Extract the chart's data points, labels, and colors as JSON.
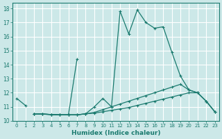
{
  "xlabel": "Humidex (Indice chaleur)",
  "bg_color": "#cce8e8",
  "grid_color": "#ffffff",
  "line_color": "#1a7a6e",
  "xlim": [
    -0.5,
    23.5
  ],
  "ylim": [
    10,
    18.4
  ],
  "xticks": [
    0,
    1,
    2,
    3,
    4,
    5,
    6,
    7,
    8,
    9,
    10,
    11,
    12,
    13,
    14,
    15,
    16,
    17,
    18,
    19,
    20,
    21,
    22,
    23
  ],
  "yticks": [
    10,
    11,
    12,
    13,
    14,
    15,
    16,
    17,
    18
  ],
  "curve_start": {
    "x": [
      0,
      1
    ],
    "y": [
      11.6,
      11.1
    ]
  },
  "curve_main": {
    "x": [
      2,
      3,
      4,
      5,
      6,
      7,
      8,
      9,
      10,
      11,
      12,
      13,
      14,
      15,
      16,
      17,
      18,
      19,
      20,
      21,
      22,
      23
    ],
    "y": [
      10.5,
      10.5,
      10.45,
      10.43,
      10.43,
      10.43,
      10.5,
      11.0,
      11.6,
      11.0,
      17.8,
      16.2,
      17.9,
      17.0,
      16.6,
      16.7,
      14.9,
      13.2,
      12.2,
      12.0,
      11.4,
      10.65
    ]
  },
  "curve_short": {
    "x": [
      2,
      3,
      4,
      5,
      6,
      7
    ],
    "y": [
      10.5,
      10.48,
      10.45,
      10.43,
      10.43,
      14.4
    ]
  },
  "curve_diag1": {
    "x": [
      2,
      3,
      4,
      5,
      6,
      7,
      8,
      9,
      10,
      11,
      12,
      13,
      14,
      15,
      16,
      17,
      18,
      19,
      20,
      21,
      22,
      23
    ],
    "y": [
      10.5,
      10.48,
      10.45,
      10.43,
      10.43,
      10.43,
      10.5,
      10.6,
      10.8,
      11.0,
      11.2,
      11.4,
      11.6,
      11.8,
      12.0,
      12.2,
      12.4,
      12.6,
      12.2,
      12.0,
      11.4,
      10.65
    ]
  },
  "curve_diag2": {
    "x": [
      2,
      3,
      4,
      5,
      6,
      7,
      8,
      9,
      10,
      11,
      12,
      13,
      14,
      15,
      16,
      17,
      18,
      19,
      20,
      21,
      22,
      23
    ],
    "y": [
      10.5,
      10.48,
      10.45,
      10.43,
      10.43,
      10.43,
      10.5,
      10.55,
      10.65,
      10.75,
      10.85,
      10.95,
      11.1,
      11.25,
      11.4,
      11.55,
      11.7,
      11.85,
      12.0,
      12.0,
      11.4,
      10.65
    ]
  }
}
